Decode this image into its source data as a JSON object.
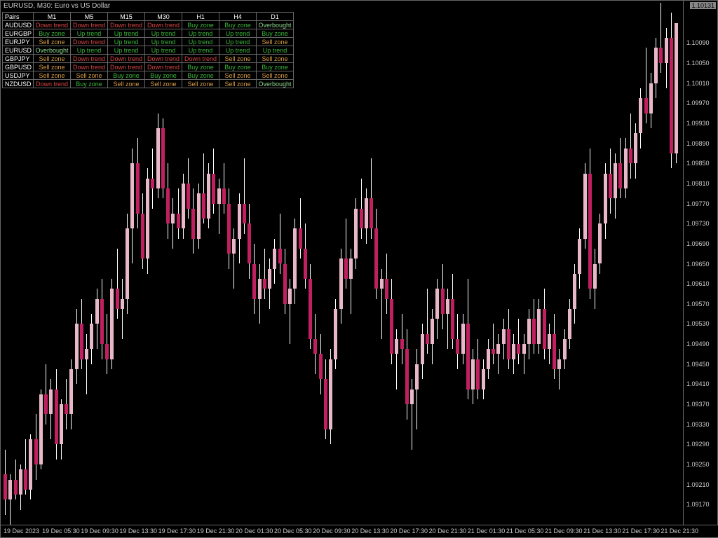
{
  "title": "EURUSD, M30: Euro vs US Dollar",
  "current_price": "1.10131",
  "chart": {
    "type": "candlestick",
    "background_color": "#000000",
    "grid_color": "#666666",
    "up_color": "#e8b8c8",
    "down_color": "#c02060",
    "wick_color": "#ffffff",
    "text_color": "#cccccc",
    "y_min": 1.0913,
    "y_max": 1.1017,
    "y_labels": [
      "1.10090",
      "1.10050",
      "1.10010",
      "1.09970",
      "1.09930",
      "1.09890",
      "1.09850",
      "1.09810",
      "1.09770",
      "1.09730",
      "1.09690",
      "1.09650",
      "1.09610",
      "1.09570",
      "1.09530",
      "1.09490",
      "1.09450",
      "1.09410",
      "1.09370",
      "1.09330",
      "1.09290",
      "1.09250",
      "1.09210",
      "1.09170"
    ],
    "x_labels": [
      "19 Dec 2023",
      "19 Dec 05:30",
      "19 Dec 09:30",
      "19 Dec 13:30",
      "19 Dec 17:30",
      "19 Dec 21:30",
      "20 Dec 01:30",
      "20 Dec 05:30",
      "20 Dec 09:30",
      "20 Dec 13:30",
      "20 Dec 17:30",
      "20 Dec 21:30",
      "21 Dec 01:30",
      "21 Dec 05:30",
      "21 Dec 09:30",
      "21 Dec 13:30",
      "21 Dec 17:30",
      "21 Dec 21:30"
    ],
    "candles": [
      {
        "o": 1.0923,
        "h": 1.0928,
        "l": 1.0915,
        "c": 1.0918
      },
      {
        "o": 1.0918,
        "h": 1.0923,
        "l": 1.0913,
        "c": 1.0922
      },
      {
        "o": 1.0922,
        "h": 1.0926,
        "l": 1.0918,
        "c": 1.0919
      },
      {
        "o": 1.0919,
        "h": 1.0925,
        "l": 1.0916,
        "c": 1.0924
      },
      {
        "o": 1.0924,
        "h": 1.093,
        "l": 1.0919,
        "c": 1.092
      },
      {
        "o": 1.092,
        "h": 1.0931,
        "l": 1.0918,
        "c": 1.093
      },
      {
        "o": 1.093,
        "h": 1.0935,
        "l": 1.0922,
        "c": 1.0925
      },
      {
        "o": 1.0925,
        "h": 1.094,
        "l": 1.0924,
        "c": 1.0939
      },
      {
        "o": 1.0939,
        "h": 1.0945,
        "l": 1.0933,
        "c": 1.0935
      },
      {
        "o": 1.0935,
        "h": 1.0942,
        "l": 1.093,
        "c": 1.094
      },
      {
        "o": 1.094,
        "h": 1.0944,
        "l": 1.0926,
        "c": 1.0929
      },
      {
        "o": 1.0929,
        "h": 1.0938,
        "l": 1.0926,
        "c": 1.0937
      },
      {
        "o": 1.0937,
        "h": 1.0942,
        "l": 1.0932,
        "c": 1.0935
      },
      {
        "o": 1.0935,
        "h": 1.0946,
        "l": 1.0932,
        "c": 1.0944
      },
      {
        "o": 1.0944,
        "h": 1.0956,
        "l": 1.0941,
        "c": 1.0953
      },
      {
        "o": 1.0953,
        "h": 1.0958,
        "l": 1.0944,
        "c": 1.0946
      },
      {
        "o": 1.0946,
        "h": 1.0951,
        "l": 1.0939,
        "c": 1.0948
      },
      {
        "o": 1.0948,
        "h": 1.0955,
        "l": 1.0945,
        "c": 1.0953
      },
      {
        "o": 1.0953,
        "h": 1.096,
        "l": 1.0948,
        "c": 1.0958
      },
      {
        "o": 1.0958,
        "h": 1.0962,
        "l": 1.0946,
        "c": 1.0949
      },
      {
        "o": 1.0949,
        "h": 1.0955,
        "l": 1.0943,
        "c": 1.0946
      },
      {
        "o": 1.0946,
        "h": 1.0962,
        "l": 1.0944,
        "c": 1.096
      },
      {
        "o": 1.096,
        "h": 1.0968,
        "l": 1.0954,
        "c": 1.0956
      },
      {
        "o": 1.0956,
        "h": 1.0962,
        "l": 1.095,
        "c": 1.0958
      },
      {
        "o": 1.0958,
        "h": 1.0975,
        "l": 1.0955,
        "c": 1.0972
      },
      {
        "o": 1.0972,
        "h": 1.0988,
        "l": 1.0965,
        "c": 1.0985
      },
      {
        "o": 1.0985,
        "h": 1.099,
        "l": 1.0972,
        "c": 1.0975
      },
      {
        "o": 1.0975,
        "h": 1.0979,
        "l": 1.0964,
        "c": 1.0966
      },
      {
        "o": 1.0966,
        "h": 1.0984,
        "l": 1.0963,
        "c": 1.0982
      },
      {
        "o": 1.0982,
        "h": 1.0988,
        "l": 1.0976,
        "c": 1.098
      },
      {
        "o": 1.098,
        "h": 1.0995,
        "l": 1.0978,
        "c": 1.0992
      },
      {
        "o": 1.0992,
        "h": 1.0994,
        "l": 1.0978,
        "c": 1.098
      },
      {
        "o": 1.098,
        "h": 1.0985,
        "l": 1.097,
        "c": 1.0973
      },
      {
        "o": 1.0973,
        "h": 1.0978,
        "l": 1.0968,
        "c": 1.0975
      },
      {
        "o": 1.0975,
        "h": 1.098,
        "l": 1.097,
        "c": 1.0972
      },
      {
        "o": 1.0972,
        "h": 1.0983,
        "l": 1.097,
        "c": 1.0981
      },
      {
        "o": 1.0981,
        "h": 1.0986,
        "l": 1.0974,
        "c": 1.0976
      },
      {
        "o": 1.0976,
        "h": 1.098,
        "l": 1.0967,
        "c": 1.097
      },
      {
        "o": 1.097,
        "h": 1.0981,
        "l": 1.0968,
        "c": 1.0979
      },
      {
        "o": 1.0979,
        "h": 1.0987,
        "l": 1.0973,
        "c": 1.0974
      },
      {
        "o": 1.0974,
        "h": 1.0985,
        "l": 1.0972,
        "c": 1.0983
      },
      {
        "o": 1.0983,
        "h": 1.0988,
        "l": 1.0975,
        "c": 1.0977
      },
      {
        "o": 1.0977,
        "h": 1.0982,
        "l": 1.0971,
        "c": 1.098
      },
      {
        "o": 1.098,
        "h": 1.0985,
        "l": 1.0975,
        "c": 1.0977
      },
      {
        "o": 1.0977,
        "h": 1.098,
        "l": 1.0964,
        "c": 1.0967
      },
      {
        "o": 1.0967,
        "h": 1.0972,
        "l": 1.096,
        "c": 1.097
      },
      {
        "o": 1.097,
        "h": 1.0979,
        "l": 1.0965,
        "c": 1.0977
      },
      {
        "o": 1.0977,
        "h": 1.0986,
        "l": 1.0971,
        "c": 1.0973
      },
      {
        "o": 1.0973,
        "h": 1.0977,
        "l": 1.0962,
        "c": 1.0965
      },
      {
        "o": 1.0965,
        "h": 1.0969,
        "l": 1.0955,
        "c": 1.0958
      },
      {
        "o": 1.0958,
        "h": 1.0965,
        "l": 1.0953,
        "c": 1.0962
      },
      {
        "o": 1.0962,
        "h": 1.0968,
        "l": 1.0958,
        "c": 1.096
      },
      {
        "o": 1.096,
        "h": 1.0966,
        "l": 1.0956,
        "c": 1.0964
      },
      {
        "o": 1.0964,
        "h": 1.097,
        "l": 1.0961,
        "c": 1.0968
      },
      {
        "o": 1.0968,
        "h": 1.0975,
        "l": 1.0963,
        "c": 1.0965
      },
      {
        "o": 1.0965,
        "h": 1.0968,
        "l": 1.0955,
        "c": 1.0957
      },
      {
        "o": 1.0957,
        "h": 1.0962,
        "l": 1.0949,
        "c": 1.096
      },
      {
        "o": 1.096,
        "h": 1.0974,
        "l": 1.0957,
        "c": 1.0972
      },
      {
        "o": 1.0972,
        "h": 1.0978,
        "l": 1.0966,
        "c": 1.0968
      },
      {
        "o": 1.0968,
        "h": 1.0973,
        "l": 1.096,
        "c": 1.0962
      },
      {
        "o": 1.0962,
        "h": 1.0965,
        "l": 1.0948,
        "c": 1.095
      },
      {
        "o": 1.095,
        "h": 1.0955,
        "l": 1.0943,
        "c": 1.0947
      },
      {
        "o": 1.0947,
        "h": 1.0951,
        "l": 1.0939,
        "c": 1.0942
      },
      {
        "o": 1.0942,
        "h": 1.0946,
        "l": 1.093,
        "c": 1.0932
      },
      {
        "o": 1.0932,
        "h": 1.0948,
        "l": 1.0929,
        "c": 1.0946
      },
      {
        "o": 1.0946,
        "h": 1.0958,
        "l": 1.0944,
        "c": 1.0956
      },
      {
        "o": 1.0956,
        "h": 1.0968,
        "l": 1.0953,
        "c": 1.0966
      },
      {
        "o": 1.0966,
        "h": 1.0974,
        "l": 1.096,
        "c": 1.0962
      },
      {
        "o": 1.0962,
        "h": 1.0968,
        "l": 1.0955,
        "c": 1.0966
      },
      {
        "o": 1.0966,
        "h": 1.0978,
        "l": 1.0964,
        "c": 1.0976
      },
      {
        "o": 1.0976,
        "h": 1.0982,
        "l": 1.097,
        "c": 1.0972
      },
      {
        "o": 1.0972,
        "h": 1.098,
        "l": 1.0969,
        "c": 1.0978
      },
      {
        "o": 1.0978,
        "h": 1.0986,
        "l": 1.097,
        "c": 1.0972
      },
      {
        "o": 1.0972,
        "h": 1.0976,
        "l": 1.0958,
        "c": 1.096
      },
      {
        "o": 1.096,
        "h": 1.0964,
        "l": 1.095,
        "c": 1.0962
      },
      {
        "o": 1.0962,
        "h": 1.0967,
        "l": 1.0955,
        "c": 1.0958
      },
      {
        "o": 1.0958,
        "h": 1.0962,
        "l": 1.0945,
        "c": 1.0947
      },
      {
        "o": 1.0947,
        "h": 1.0952,
        "l": 1.094,
        "c": 1.095
      },
      {
        "o": 1.095,
        "h": 1.0955,
        "l": 1.0945,
        "c": 1.0948
      },
      {
        "o": 1.0948,
        "h": 1.0952,
        "l": 1.0934,
        "c": 1.0937
      },
      {
        "o": 1.0937,
        "h": 1.0942,
        "l": 1.0928,
        "c": 1.094
      },
      {
        "o": 1.094,
        "h": 1.0948,
        "l": 1.0932,
        "c": 1.0945
      },
      {
        "o": 1.0945,
        "h": 1.0953,
        "l": 1.0942,
        "c": 1.0951
      },
      {
        "o": 1.0951,
        "h": 1.096,
        "l": 1.0947,
        "c": 1.0949
      },
      {
        "o": 1.0949,
        "h": 1.0956,
        "l": 1.0945,
        "c": 1.0954
      },
      {
        "o": 1.0954,
        "h": 1.0962,
        "l": 1.095,
        "c": 1.096
      },
      {
        "o": 1.096,
        "h": 1.0965,
        "l": 1.0952,
        "c": 1.0955
      },
      {
        "o": 1.0955,
        "h": 1.096,
        "l": 1.0948,
        "c": 1.0958
      },
      {
        "o": 1.0958,
        "h": 1.0963,
        "l": 1.0948,
        "c": 1.095
      },
      {
        "o": 1.095,
        "h": 1.0955,
        "l": 1.0944,
        "c": 1.0947
      },
      {
        "o": 1.0947,
        "h": 1.0955,
        "l": 1.0945,
        "c": 1.0953
      },
      {
        "o": 1.0953,
        "h": 1.0962,
        "l": 1.0938,
        "c": 1.094
      },
      {
        "o": 1.094,
        "h": 1.0948,
        "l": 1.0937,
        "c": 1.0946
      },
      {
        "o": 1.0946,
        "h": 1.095,
        "l": 1.0938,
        "c": 1.094
      },
      {
        "o": 1.094,
        "h": 1.0946,
        "l": 1.0938,
        "c": 1.0944
      },
      {
        "o": 1.0944,
        "h": 1.095,
        "l": 1.0942,
        "c": 1.0948
      },
      {
        "o": 1.0948,
        "h": 1.0953,
        "l": 1.0945,
        "c": 1.0947
      },
      {
        "o": 1.0947,
        "h": 1.0951,
        "l": 1.0943,
        "c": 1.0949
      },
      {
        "o": 1.0949,
        "h": 1.0954,
        "l": 1.0946,
        "c": 1.0952
      },
      {
        "o": 1.0952,
        "h": 1.0956,
        "l": 1.0944,
        "c": 1.0946
      },
      {
        "o": 1.0946,
        "h": 1.0951,
        "l": 1.0943,
        "c": 1.0949
      },
      {
        "o": 1.0949,
        "h": 1.0954,
        "l": 1.0945,
        "c": 1.0947
      },
      {
        "o": 1.0947,
        "h": 1.0951,
        "l": 1.0943,
        "c": 1.0949
      },
      {
        "o": 1.0949,
        "h": 1.0956,
        "l": 1.0946,
        "c": 1.0954
      },
      {
        "o": 1.0954,
        "h": 1.0958,
        "l": 1.0947,
        "c": 1.0949
      },
      {
        "o": 1.0949,
        "h": 1.0958,
        "l": 1.0947,
        "c": 1.0956
      },
      {
        "o": 1.0956,
        "h": 1.096,
        "l": 1.0946,
        "c": 1.0948
      },
      {
        "o": 1.0948,
        "h": 1.0953,
        "l": 1.0945,
        "c": 1.0951
      },
      {
        "o": 1.0951,
        "h": 1.0955,
        "l": 1.0942,
        "c": 1.0944
      },
      {
        "o": 1.0944,
        "h": 1.0948,
        "l": 1.094,
        "c": 1.0946
      },
      {
        "o": 1.0946,
        "h": 1.0952,
        "l": 1.0944,
        "c": 1.095
      },
      {
        "o": 1.095,
        "h": 1.0958,
        "l": 1.0948,
        "c": 1.0956
      },
      {
        "o": 1.0956,
        "h": 1.0965,
        "l": 1.0953,
        "c": 1.0963
      },
      {
        "o": 1.0963,
        "h": 1.0972,
        "l": 1.096,
        "c": 1.097
      },
      {
        "o": 1.097,
        "h": 1.0985,
        "l": 1.0968,
        "c": 1.0983
      },
      {
        "o": 1.0983,
        "h": 1.0988,
        "l": 1.0958,
        "c": 1.096
      },
      {
        "o": 1.096,
        "h": 1.0968,
        "l": 1.0956,
        "c": 1.0965
      },
      {
        "o": 1.0965,
        "h": 1.0975,
        "l": 1.0963,
        "c": 1.0973
      },
      {
        "o": 1.0973,
        "h": 1.0985,
        "l": 1.097,
        "c": 1.0983
      },
      {
        "o": 1.0983,
        "h": 1.0988,
        "l": 1.0975,
        "c": 1.0978
      },
      {
        "o": 1.0978,
        "h": 1.0987,
        "l": 1.0974,
        "c": 1.0985
      },
      {
        "o": 1.0985,
        "h": 1.099,
        "l": 1.0978,
        "c": 1.098
      },
      {
        "o": 1.098,
        "h": 1.099,
        "l": 1.0978,
        "c": 1.0988
      },
      {
        "o": 1.0988,
        "h": 1.0995,
        "l": 1.0982,
        "c": 1.0985
      },
      {
        "o": 1.0985,
        "h": 1.0993,
        "l": 1.0982,
        "c": 1.0991
      },
      {
        "o": 1.0991,
        "h": 1.1,
        "l": 1.0988,
        "c": 1.0998
      },
      {
        "o": 1.0998,
        "h": 1.1008,
        "l": 1.0993,
        "c": 1.0995
      },
      {
        "o": 1.0995,
        "h": 1.1003,
        "l": 1.0992,
        "c": 1.1001
      },
      {
        "o": 1.1001,
        "h": 1.101,
        "l": 1.0998,
        "c": 1.1008
      },
      {
        "o": 1.1008,
        "h": 1.1017,
        "l": 1.1003,
        "c": 1.1005
      },
      {
        "o": 1.1005,
        "h": 1.1012,
        "l": 1.1,
        "c": 1.101
      },
      {
        "o": 1.101,
        "h": 1.1015,
        "l": 1.0984,
        "c": 1.0987
      },
      {
        "o": 1.0987,
        "h": 1.1013,
        "l": 1.0985,
        "c": 1.1013
      }
    ]
  },
  "signal_table": {
    "headers": [
      "Pairs",
      "M1",
      "M5",
      "M15",
      "M30",
      "H1",
      "H4",
      "D1"
    ],
    "rows": [
      {
        "pair": "AUDUSD",
        "cells": [
          {
            "t": "Down trend",
            "c": "red"
          },
          {
            "t": "Down trend",
            "c": "red"
          },
          {
            "t": "Down trend",
            "c": "red"
          },
          {
            "t": "Down trend",
            "c": "red"
          },
          {
            "t": "Buy zone",
            "c": "green"
          },
          {
            "t": "Buy zone",
            "c": "green"
          },
          {
            "t": "Overbought",
            "c": "lgreen"
          }
        ]
      },
      {
        "pair": "EURGBP",
        "cells": [
          {
            "t": "Buy zone",
            "c": "green"
          },
          {
            "t": "Up trend",
            "c": "green"
          },
          {
            "t": "Up trend",
            "c": "green"
          },
          {
            "t": "Up trend",
            "c": "green"
          },
          {
            "t": "Up trend",
            "c": "green"
          },
          {
            "t": "Up trend",
            "c": "green"
          },
          {
            "t": "Buy zone",
            "c": "green"
          }
        ]
      },
      {
        "pair": "EURJPY",
        "cells": [
          {
            "t": "Sell zone",
            "c": "orange"
          },
          {
            "t": "Down trend",
            "c": "red"
          },
          {
            "t": "Up trend",
            "c": "green"
          },
          {
            "t": "Up trend",
            "c": "green"
          },
          {
            "t": "Up trend",
            "c": "green"
          },
          {
            "t": "Up trend",
            "c": "green"
          },
          {
            "t": "Sell zone",
            "c": "orange"
          }
        ]
      },
      {
        "pair": "EURUSD",
        "cells": [
          {
            "t": "Overbought",
            "c": "lgreen"
          },
          {
            "t": "Up trend",
            "c": "green"
          },
          {
            "t": "Up trend",
            "c": "green"
          },
          {
            "t": "Up trend",
            "c": "green"
          },
          {
            "t": "Up trend",
            "c": "green"
          },
          {
            "t": "Up trend",
            "c": "green"
          },
          {
            "t": "Up trend",
            "c": "green"
          }
        ]
      },
      {
        "pair": "GBPJPY",
        "cells": [
          {
            "t": "Sell zone",
            "c": "orange"
          },
          {
            "t": "Down trend",
            "c": "red"
          },
          {
            "t": "Down trend",
            "c": "red"
          },
          {
            "t": "Down trend",
            "c": "red"
          },
          {
            "t": "Down trend",
            "c": "red"
          },
          {
            "t": "Sell zone",
            "c": "orange"
          },
          {
            "t": "Sell zone",
            "c": "orange"
          }
        ]
      },
      {
        "pair": "GBPUSD",
        "cells": [
          {
            "t": "Sell zone",
            "c": "orange"
          },
          {
            "t": "Down trend",
            "c": "red"
          },
          {
            "t": "Down trend",
            "c": "red"
          },
          {
            "t": "Down trend",
            "c": "red"
          },
          {
            "t": "Buy zone",
            "c": "green"
          },
          {
            "t": "Buy zone",
            "c": "green"
          },
          {
            "t": "Buy zone",
            "c": "green"
          }
        ]
      },
      {
        "pair": "USDJPY",
        "cells": [
          {
            "t": "Sell zone",
            "c": "orange"
          },
          {
            "t": "Sell zone",
            "c": "orange"
          },
          {
            "t": "Buy zone",
            "c": "green"
          },
          {
            "t": "Buy zone",
            "c": "green"
          },
          {
            "t": "Buy zone",
            "c": "green"
          },
          {
            "t": "Sell zone",
            "c": "orange"
          },
          {
            "t": "Sell zone",
            "c": "orange"
          }
        ]
      },
      {
        "pair": "NZDUSD",
        "cells": [
          {
            "t": "Down trend",
            "c": "red"
          },
          {
            "t": "Buy zone",
            "c": "green"
          },
          {
            "t": "Sell zone",
            "c": "orange"
          },
          {
            "t": "Sell zone",
            "c": "orange"
          },
          {
            "t": "Sell zone",
            "c": "orange"
          },
          {
            "t": "Sell zone",
            "c": "orange"
          },
          {
            "t": "Overbought",
            "c": "lgreen"
          }
        ]
      }
    ]
  }
}
